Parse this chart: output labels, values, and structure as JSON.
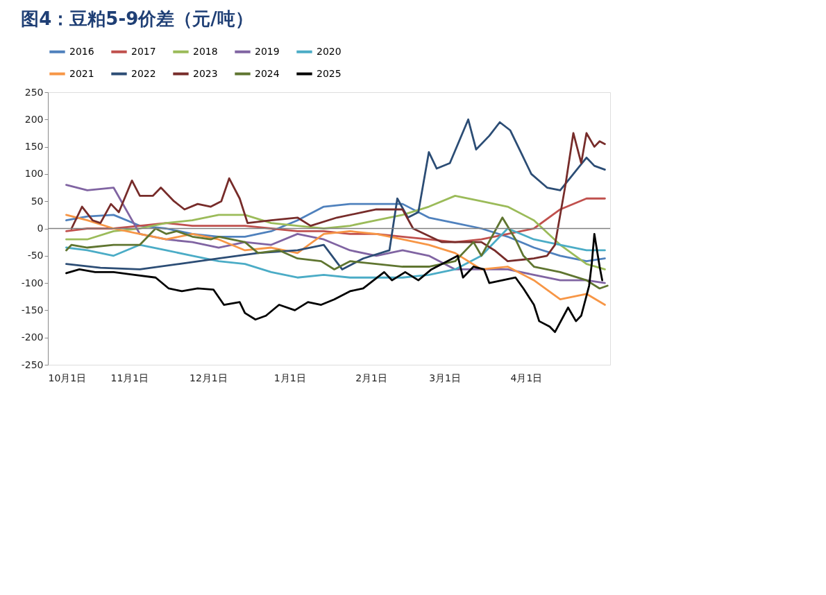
{
  "chart_data": {
    "type": "line",
    "title": "图4：豆粕5-9价差（元/吨）",
    "x": [
      "2024-10-08",
      "2024-10-16",
      "2024-10-26",
      "2024-11-05",
      "2024-11-15",
      "2024-11-25",
      "2024-12-05",
      "2024-12-15",
      "2024-12-25",
      "2025-01-04",
      "2025-01-14",
      "2025-01-24",
      "2025-02-03",
      "2025-02-13",
      "2025-02-23",
      "2025-03-05",
      "2025-03-15",
      "2025-03-25",
      "2025-04-04",
      "2025-04-14",
      "2025-04-24",
      "2025-05-01"
    ],
    "xlim": [
      "2024-10-01",
      "2025-05-03"
    ],
    "xticks": [
      {
        "value": "2024-10-01",
        "label": "10月1日"
      },
      {
        "value": "2024-11-01",
        "label": "11月1日"
      },
      {
        "value": "2024-12-01",
        "label": "12月1日"
      },
      {
        "value": "2025-01-01",
        "label": "1月1日"
      },
      {
        "value": "2025-02-01",
        "label": "2月1日"
      },
      {
        "value": "2025-03-01",
        "label": "3月1日"
      },
      {
        "value": "2025-04-01",
        "label": "4月1日"
      }
    ],
    "ylim": [
      -250,
      250
    ],
    "yticks": [
      -250,
      -200,
      -150,
      -100,
      -50,
      0,
      50,
      100,
      150,
      200,
      250
    ],
    "grid": false,
    "legend": "top",
    "marker": "none",
    "line_style": "solid",
    "ref_lines": [
      {
        "axis": "y",
        "value": 0,
        "color": "#808080"
      }
    ],
    "series": [
      {
        "name": "2016",
        "color": "#4f81bd",
        "values": [
          15,
          22,
          25,
          5,
          0,
          -10,
          -15,
          -15,
          -5,
          15,
          40,
          45,
          45,
          45,
          20,
          10,
          0,
          -15,
          -35,
          -50,
          -60,
          -55
        ]
      },
      {
        "name": "2017",
        "color": "#c0504d",
        "values": [
          -5,
          0,
          0,
          5,
          10,
          5,
          5,
          5,
          0,
          -5,
          -5,
          -10,
          -10,
          -15,
          -20,
          -25,
          -20,
          -10,
          0,
          35,
          55,
          55
        ]
      },
      {
        "name": "2018",
        "color": "#9bbb59",
        "values": [
          -20,
          -20,
          -5,
          0,
          10,
          15,
          25,
          25,
          10,
          5,
          0,
          5,
          15,
          25,
          40,
          60,
          50,
          40,
          15,
          -30,
          -65,
          -75
        ]
      },
      {
        "name": "2019",
        "color": "#8064a2",
        "values": [
          80,
          70,
          75,
          -10,
          -20,
          -25,
          -35,
          -25,
          -30,
          -10,
          -20,
          -40,
          -50,
          -40,
          -50,
          -75,
          -75,
          -75,
          -85,
          -95,
          -95,
          -100
        ]
      },
      {
        "name": "2020",
        "color": "#4bacc6",
        "values": [
          -35,
          -40,
          -50,
          -30,
          -40,
          -50,
          -60,
          -65,
          -80,
          -90,
          -85,
          -90,
          -90,
          -90,
          -85,
          -75,
          -50,
          0,
          -20,
          -30,
          -40,
          -40
        ]
      },
      {
        "name": "2021",
        "color": "#f79646",
        "values": [
          25,
          15,
          0,
          -10,
          -20,
          -10,
          -20,
          -40,
          -35,
          -45,
          -10,
          -5,
          -10,
          -20,
          -30,
          -45,
          -75,
          -70,
          -95,
          -130,
          -120,
          -140
        ]
      },
      {
        "name": "2022",
        "color": "#2c4d75",
        "x": [
          "2024-10-08",
          "2024-10-21",
          "2024-11-05",
          "2024-11-20",
          "2024-12-05",
          "2024-12-20",
          "2025-01-04",
          "2025-01-14",
          "2025-01-21",
          "2025-01-29",
          "2025-02-08",
          "2025-02-11",
          "2025-02-15",
          "2025-02-19",
          "2025-02-23",
          "2025-02-26",
          "2025-03-03",
          "2025-03-10",
          "2025-03-13",
          "2025-03-18",
          "2025-03-22",
          "2025-03-26",
          "2025-03-30",
          "2025-04-03",
          "2025-04-09",
          "2025-04-14",
          "2025-04-19",
          "2025-04-24",
          "2025-04-27",
          "2025-05-01"
        ],
        "values": [
          -65,
          -72,
          -75,
          -65,
          -55,
          -45,
          -40,
          -30,
          -75,
          -55,
          -40,
          55,
          20,
          30,
          140,
          110,
          120,
          200,
          145,
          170,
          195,
          180,
          140,
          100,
          75,
          70,
          100,
          130,
          115,
          108
        ]
      },
      {
        "name": "2023",
        "color": "#772c2a",
        "x": [
          "2024-10-10",
          "2024-10-14",
          "2024-10-18",
          "2024-10-21",
          "2024-10-25",
          "2024-10-28",
          "2024-11-02",
          "2024-11-05",
          "2024-11-10",
          "2024-11-13",
          "2024-11-18",
          "2024-11-22",
          "2024-11-27",
          "2024-12-02",
          "2024-12-06",
          "2024-12-09",
          "2024-12-13",
          "2024-12-16",
          "2024-12-25",
          "2025-01-04",
          "2025-01-09",
          "2025-01-19",
          "2025-01-29",
          "2025-02-03",
          "2025-02-13",
          "2025-02-17",
          "2025-02-28",
          "2025-03-15",
          "2025-03-20",
          "2025-03-25",
          "2025-04-04",
          "2025-04-09",
          "2025-04-12",
          "2025-04-16",
          "2025-04-19",
          "2025-04-22",
          "2025-04-24",
          "2025-04-27",
          "2025-04-29",
          "2025-05-01"
        ],
        "values": [
          0,
          40,
          15,
          10,
          45,
          30,
          88,
          60,
          60,
          75,
          50,
          35,
          45,
          40,
          50,
          92,
          55,
          10,
          15,
          20,
          5,
          20,
          30,
          35,
          35,
          0,
          -25,
          -25,
          -40,
          -60,
          -55,
          -50,
          -30,
          80,
          175,
          120,
          175,
          150,
          160,
          155
        ]
      },
      {
        "name": "2024",
        "color": "#5f7530",
        "x": [
          "2024-10-08",
          "2024-10-10",
          "2024-10-16",
          "2024-10-26",
          "2024-11-05",
          "2024-11-11",
          "2024-11-15",
          "2024-11-19",
          "2024-11-25",
          "2024-12-02",
          "2024-12-05",
          "2024-12-15",
          "2024-12-20",
          "2024-12-28",
          "2025-01-04",
          "2025-01-13",
          "2025-01-18",
          "2025-01-24",
          "2025-02-03",
          "2025-02-13",
          "2025-02-23",
          "2025-03-05",
          "2025-03-12",
          "2025-03-15",
          "2025-03-23",
          "2025-03-28",
          "2025-03-31",
          "2025-04-04",
          "2025-04-14",
          "2025-04-24",
          "2025-04-29",
          "2025-05-02"
        ],
        "values": [
          -40,
          -30,
          -35,
          -30,
          -30,
          0,
          -10,
          -5,
          -15,
          -20,
          -15,
          -25,
          -45,
          -40,
          -55,
          -60,
          -75,
          -60,
          -65,
          -70,
          -70,
          -60,
          -25,
          -50,
          20,
          -20,
          -50,
          -70,
          -80,
          -95,
          -110,
          -105
        ]
      },
      {
        "name": "2025",
        "color": "#000000",
        "x": [
          "2024-10-08",
          "2024-10-13",
          "2024-10-19",
          "2024-10-26",
          "2024-11-03",
          "2024-11-11",
          "2024-11-16",
          "2024-11-21",
          "2024-11-27",
          "2024-12-03",
          "2024-12-07",
          "2024-12-13",
          "2024-12-15",
          "2024-12-19",
          "2024-12-23",
          "2024-12-28",
          "2025-01-03",
          "2025-01-08",
          "2025-01-13",
          "2025-01-18",
          "2025-01-24",
          "2025-01-29",
          "2025-02-06",
          "2025-02-09",
          "2025-02-14",
          "2025-02-19",
          "2025-02-24",
          "2025-03-02",
          "2025-03-06",
          "2025-03-08",
          "2025-03-12",
          "2025-03-16",
          "2025-03-18",
          "2025-03-23",
          "2025-03-28",
          "2025-03-31",
          "2025-04-04",
          "2025-04-06",
          "2025-04-10",
          "2025-04-12",
          "2025-04-17",
          "2025-04-20",
          "2025-04-22",
          "2025-04-25",
          "2025-04-26",
          "2025-04-27",
          "2025-04-29",
          "2025-04-30"
        ],
        "values": [
          -82,
          -75,
          -80,
          -80,
          -85,
          -90,
          -110,
          -115,
          -110,
          -112,
          -140,
          -135,
          -155,
          -167,
          -160,
          -140,
          -150,
          -135,
          -140,
          -130,
          -115,
          -110,
          -80,
          -95,
          -80,
          -95,
          -75,
          -60,
          -50,
          -90,
          -70,
          -75,
          -100,
          -95,
          -90,
          -110,
          -140,
          -170,
          -180,
          -190,
          -145,
          -170,
          -160,
          -105,
          -65,
          -10,
          -70,
          -95
        ]
      }
    ]
  }
}
